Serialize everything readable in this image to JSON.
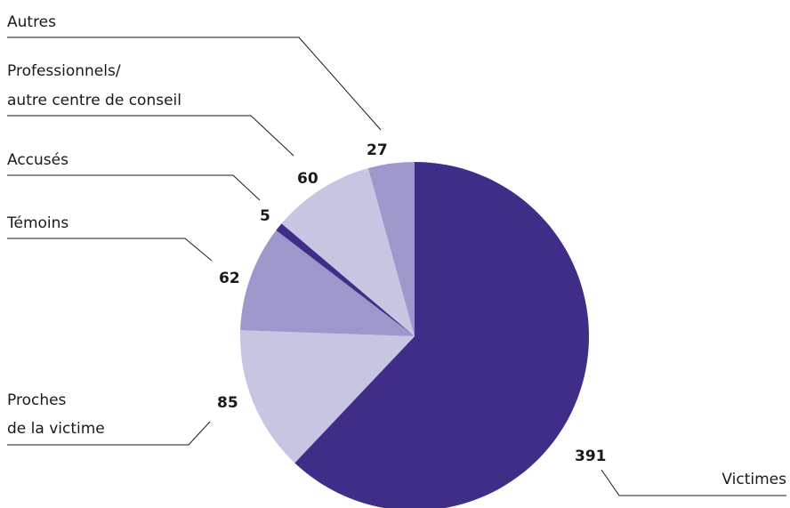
{
  "chart_data": {
    "type": "pie",
    "start_angle_deg": 0,
    "direction": "clockwise",
    "slices": [
      {
        "label": "Victimes",
        "value": 391,
        "color": "#3f2d87"
      },
      {
        "label": "Proches de la victime",
        "value": 85,
        "color": "#c6c5e2"
      },
      {
        "label": "Témoins",
        "value": 62,
        "color": "#9d98cb"
      },
      {
        "label": "Accusés",
        "value": 5,
        "color": "#3f2d87"
      },
      {
        "label": "Professionnels/ autre centre de conseil",
        "value": 60,
        "color": "#c6c5e2"
      },
      {
        "label": "Autres",
        "value": 27,
        "color": "#9d98cb"
      }
    ],
    "labels": {
      "victimes": [
        "Victimes"
      ],
      "proches": [
        "Proches",
        "de la victime"
      ],
      "temoins": [
        "Témoins"
      ],
      "accuses": [
        "Accusés"
      ],
      "professionnels": [
        "Professionnels/",
        "autre centre de conseil"
      ],
      "autres": [
        "Autres"
      ]
    }
  }
}
